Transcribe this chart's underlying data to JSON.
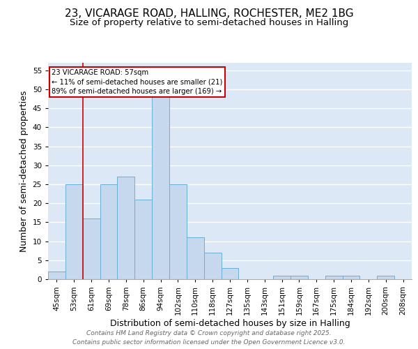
{
  "title1": "23, VICARAGE ROAD, HALLING, ROCHESTER, ME2 1BG",
  "title2": "Size of property relative to semi-detached houses in Halling",
  "xlabel": "Distribution of semi-detached houses by size in Halling",
  "ylabel": "Number of semi-detached properties",
  "categories": [
    "45sqm",
    "53sqm",
    "61sqm",
    "69sqm",
    "78sqm",
    "86sqm",
    "94sqm",
    "102sqm",
    "110sqm",
    "118sqm",
    "127sqm",
    "135sqm",
    "143sqm",
    "151sqm",
    "159sqm",
    "167sqm",
    "175sqm",
    "184sqm",
    "192sqm",
    "200sqm",
    "208sqm"
  ],
  "values": [
    2,
    25,
    16,
    25,
    27,
    21,
    49,
    25,
    11,
    7,
    3,
    0,
    0,
    1,
    1,
    0,
    1,
    1,
    0,
    1,
    0
  ],
  "bar_color": "#c5d8ed",
  "bar_edge_color": "#6baed6",
  "background_color": "#dce8f5",
  "vline_color": "#cc0000",
  "annotation_text": "23 VICARAGE ROAD: 57sqm\n← 11% of semi-detached houses are smaller (21)\n89% of semi-detached houses are larger (169) →",
  "annotation_box_color": "#cc0000",
  "ylim": [
    0,
    57
  ],
  "yticks": [
    0,
    5,
    10,
    15,
    20,
    25,
    30,
    35,
    40,
    45,
    50,
    55
  ],
  "footer1": "Contains HM Land Registry data © Crown copyright and database right 2025.",
  "footer2": "Contains public sector information licensed under the Open Government Licence v3.0.",
  "title_fontsize": 11,
  "subtitle_fontsize": 9.5,
  "axis_label_fontsize": 9,
  "tick_fontsize": 7.5,
  "footer_fontsize": 6.5,
  "vline_pos": 1.5
}
